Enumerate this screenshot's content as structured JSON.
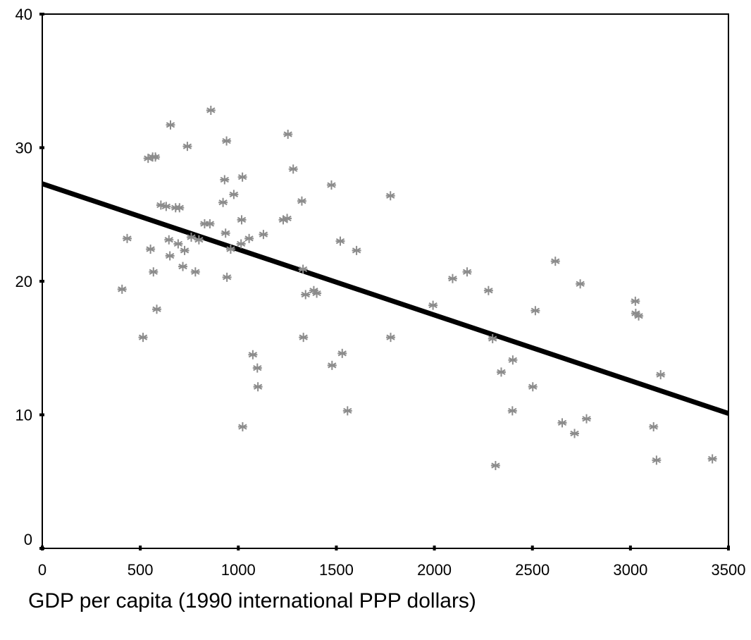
{
  "chart_data": {
    "type": "scatter",
    "title": "",
    "xlabel": "GDP per capita (1990 international PPP dollars)",
    "ylabel": "",
    "xlim": [
      0,
      3500
    ],
    "ylim": [
      0,
      40
    ],
    "x_ticks": [
      "0",
      "500",
      "1000",
      "1500",
      "2000",
      "2500",
      "3000",
      "3500"
    ],
    "y_ticks": [
      "0",
      "10",
      "20",
      "30",
      "40"
    ],
    "grid": false,
    "legend": "none",
    "colors": {
      "points": "#8c8c8c",
      "fit_line": "#000000",
      "axes": "#000000"
    },
    "marker": "asterisk",
    "fit_line": {
      "x": [
        0,
        3500
      ],
      "y": [
        27.3,
        10.1
      ]
    },
    "points": [
      [
        407,
        19.4
      ],
      [
        433,
        23.2
      ],
      [
        514,
        15.8
      ],
      [
        540,
        29.2
      ],
      [
        552,
        22.4
      ],
      [
        563,
        29.3
      ],
      [
        567,
        20.7
      ],
      [
        577,
        29.3
      ],
      [
        584,
        17.9
      ],
      [
        605,
        25.7
      ],
      [
        632,
        25.6
      ],
      [
        646,
        23.1
      ],
      [
        651,
        21.9
      ],
      [
        654,
        31.7
      ],
      [
        680,
        25.5
      ],
      [
        693,
        22.8
      ],
      [
        700,
        25.5
      ],
      [
        717,
        21.1
      ],
      [
        726,
        22.3
      ],
      [
        740,
        30.1
      ],
      [
        760,
        23.3
      ],
      [
        781,
        20.7
      ],
      [
        799,
        23.1
      ],
      [
        828,
        24.3
      ],
      [
        855,
        24.3
      ],
      [
        860,
        32.8
      ],
      [
        922,
        25.9
      ],
      [
        930,
        27.6
      ],
      [
        935,
        23.6
      ],
      [
        940,
        30.5
      ],
      [
        942,
        20.3
      ],
      [
        961,
        22.4
      ],
      [
        977,
        26.5
      ],
      [
        1014,
        22.8
      ],
      [
        1017,
        24.6
      ],
      [
        1021,
        27.8
      ],
      [
        1022,
        9.1
      ],
      [
        1055,
        23.2
      ],
      [
        1074,
        14.5
      ],
      [
        1097,
        13.5
      ],
      [
        1100,
        12.1
      ],
      [
        1128,
        23.5
      ],
      [
        1229,
        24.6
      ],
      [
        1249,
        24.7
      ],
      [
        1253,
        31.0
      ],
      [
        1280,
        28.4
      ],
      [
        1324,
        26.0
      ],
      [
        1330,
        20.9
      ],
      [
        1332,
        15.8
      ],
      [
        1343,
        19.0
      ],
      [
        1385,
        19.3
      ],
      [
        1400,
        19.1
      ],
      [
        1475,
        27.2
      ],
      [
        1478,
        13.7
      ],
      [
        1520,
        23.0
      ],
      [
        1530,
        14.6
      ],
      [
        1557,
        10.3
      ],
      [
        1603,
        22.3
      ],
      [
        1776,
        26.4
      ],
      [
        1777,
        15.8
      ],
      [
        1993,
        18.2
      ],
      [
        2093,
        20.2
      ],
      [
        2167,
        20.7
      ],
      [
        2276,
        19.3
      ],
      [
        2297,
        15.7
      ],
      [
        2312,
        6.2
      ],
      [
        2341,
        13.2
      ],
      [
        2398,
        10.3
      ],
      [
        2400,
        14.1
      ],
      [
        2502,
        12.1
      ],
      [
        2515,
        17.8
      ],
      [
        2617,
        21.5
      ],
      [
        2652,
        9.4
      ],
      [
        2715,
        8.6
      ],
      [
        2744,
        19.8
      ],
      [
        2776,
        9.7
      ],
      [
        3025,
        18.5
      ],
      [
        3027,
        17.6
      ],
      [
        3042,
        17.4
      ],
      [
        3118,
        9.1
      ],
      [
        3133,
        6.6
      ],
      [
        3154,
        13.0
      ],
      [
        3418,
        6.7
      ]
    ]
  }
}
